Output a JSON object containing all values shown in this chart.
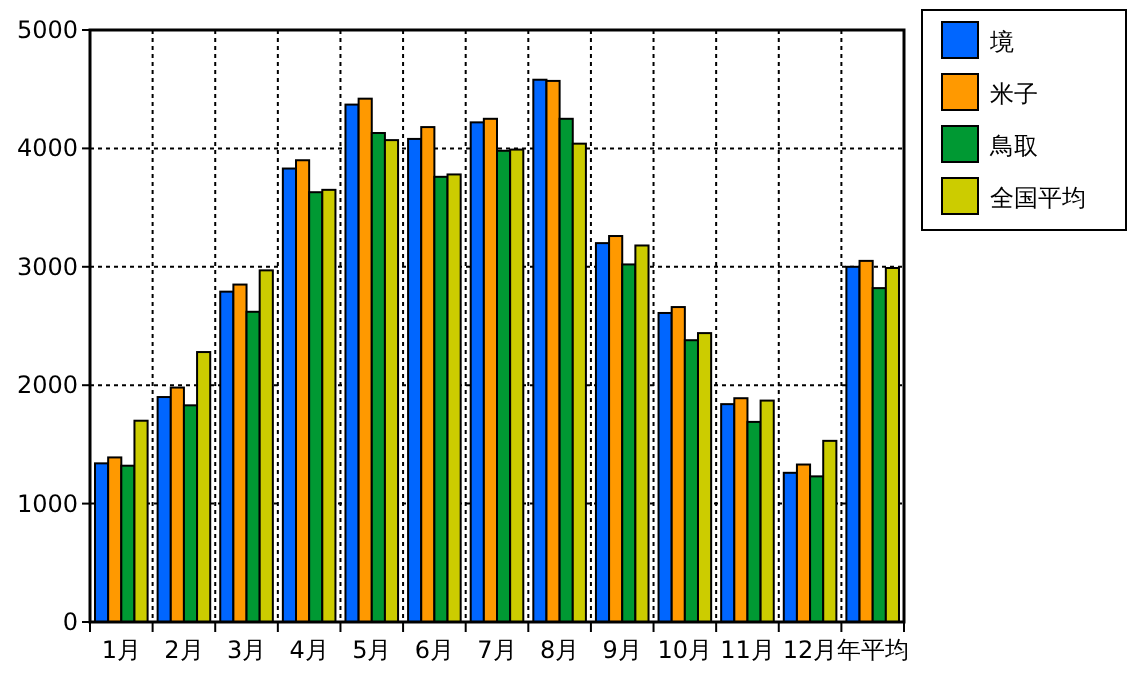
{
  "chart_data": {
    "type": "bar",
    "categories": [
      "1月",
      "2月",
      "3月",
      "4月",
      "5月",
      "6月",
      "7月",
      "8月",
      "9月",
      "10月",
      "11月",
      "12月",
      "年平均"
    ],
    "series": [
      {
        "name": "境",
        "color": "#0066ff",
        "values": [
          1340,
          1900,
          2790,
          3830,
          4370,
          4080,
          4220,
          4580,
          3200,
          2610,
          1840,
          1260,
          3000
        ]
      },
      {
        "name": "米子",
        "color": "#ff9900",
        "values": [
          1390,
          1980,
          2850,
          3900,
          4420,
          4180,
          4250,
          4570,
          3260,
          2660,
          1890,
          1330,
          3050
        ]
      },
      {
        "name": "鳥取",
        "color": "#009933",
        "values": [
          1320,
          1830,
          2620,
          3630,
          4130,
          3760,
          3980,
          4250,
          3020,
          2380,
          1690,
          1230,
          2820
        ]
      },
      {
        "name": "全国平均",
        "color": "#cccc00",
        "values": [
          1700,
          2280,
          2970,
          3650,
          4070,
          3780,
          3990,
          4040,
          3180,
          2440,
          1870,
          1530,
          2990
        ]
      }
    ],
    "ylim": [
      0,
      5000
    ],
    "yticks": [
      0,
      1000,
      2000,
      3000,
      4000,
      5000
    ],
    "grid": true,
    "legend": "right"
  }
}
